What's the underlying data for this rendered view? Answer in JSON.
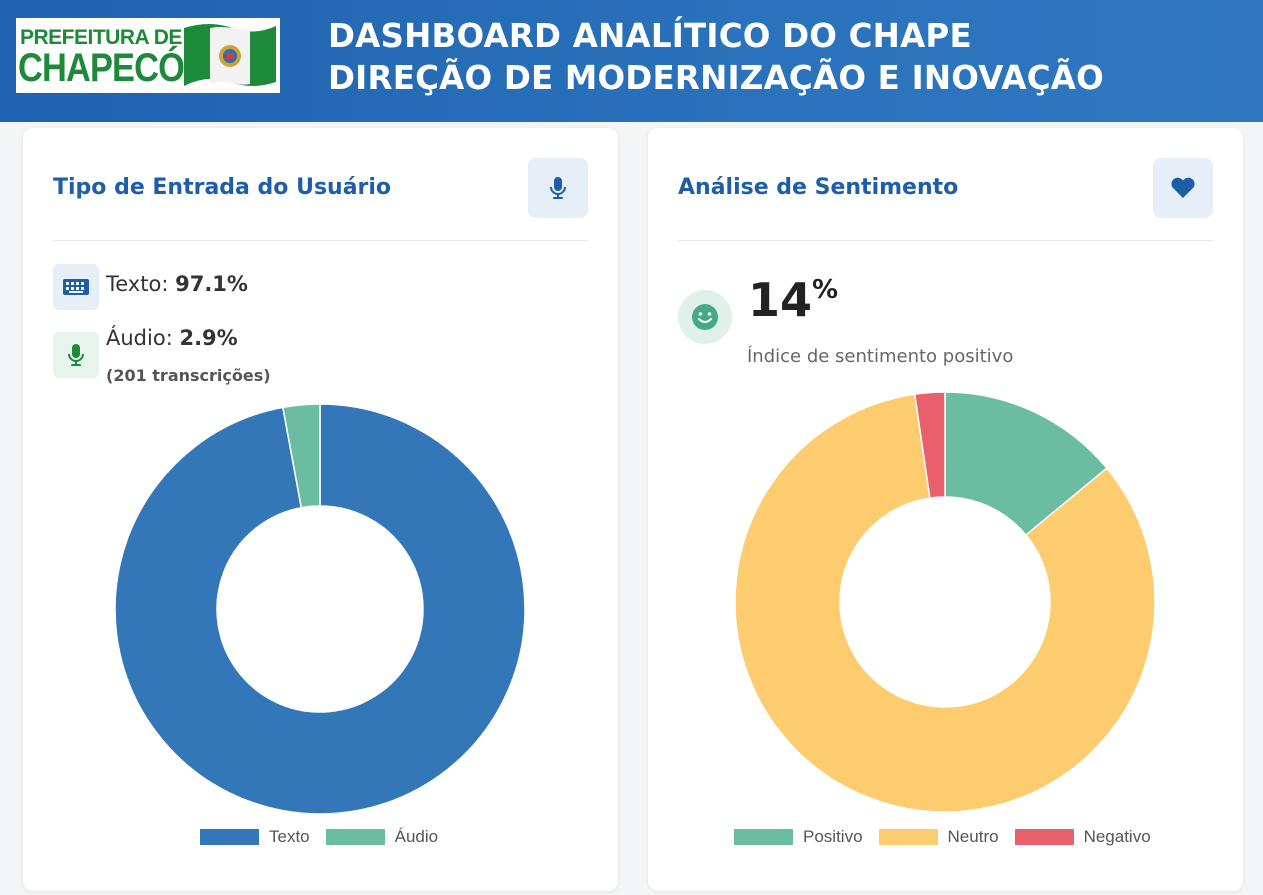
{
  "header": {
    "logo": {
      "line1": "PREFEITURA DE",
      "line2": "CHAPECÓ"
    },
    "title_line1": "DASHBOARD ANALÍTICO DO CHAPE",
    "title_line2": "DIREÇÃO DE MODERNIZAÇÃO E INOVAÇÃO"
  },
  "colors": {
    "texto": "#3377b9",
    "audio": "#6bbda1",
    "positivo": "#6bbda1",
    "neutro": "#fccc6e",
    "negativo": "#e8606c",
    "accent": "#1e5ea8"
  },
  "input_card": {
    "title": "Tipo de Entrada do Usuário",
    "header_icon": "microphone-icon",
    "texto_label": "Texto:",
    "texto_value": "97.1%",
    "audio_label": "Áudio:",
    "audio_value": "2.9%",
    "audio_sub": "(201 transcrições)",
    "chart_data": {
      "type": "pie",
      "labels": [
        "Texto",
        "Áudio"
      ],
      "values": [
        97.1,
        2.9
      ]
    }
  },
  "sentiment_card": {
    "title": "Análise de Sentimento",
    "header_icon": "heart-icon",
    "score_value": "14",
    "score_unit": "%",
    "score_caption": "Índice de sentimento positivo",
    "chart_data": {
      "type": "pie",
      "labels": [
        "Positivo",
        "Neutro",
        "Negativo"
      ],
      "values": [
        14,
        83.7,
        2.3
      ]
    }
  }
}
